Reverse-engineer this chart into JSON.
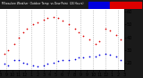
{
  "bg_color": "#1a1a1a",
  "plot_bg": "#ffffff",
  "legend_blue_color": "#0000dd",
  "legend_red_color": "#dd0000",
  "grid_color": "#888888",
  "x_tick_labels": [
    "8",
    "",
    "",
    "9",
    "",
    "",
    "10",
    "",
    "",
    "11",
    "",
    "",
    "12",
    "",
    "",
    "1",
    "",
    "",
    "2",
    "",
    "",
    "3",
    "",
    "",
    "4",
    "",
    "",
    "5",
    "",
    "",
    "6",
    "",
    "",
    "7",
    "",
    "",
    "8",
    "",
    "",
    "9",
    "",
    "",
    "10",
    "",
    "",
    "11",
    "",
    "",
    "12",
    "",
    "",
    "1",
    "",
    "",
    "2",
    "",
    "",
    "3",
    "",
    "",
    "4",
    "",
    "",
    "5",
    "",
    "",
    "6",
    "",
    "",
    "7"
  ],
  "ylim": [
    14,
    62
  ],
  "ytick_vals": [
    20,
    30,
    40,
    50,
    60
  ],
  "ytick_labels": [
    "20",
    "30",
    "40",
    "50",
    "60"
  ],
  "temp_x": [
    2,
    4,
    7,
    9,
    11,
    13,
    16,
    18,
    21,
    23,
    26,
    28,
    30,
    33,
    36,
    38,
    40,
    43,
    46,
    48,
    51,
    53,
    56,
    58
  ],
  "temp_y": [
    27,
    30,
    35,
    40,
    44,
    47,
    50,
    52,
    54,
    55,
    56,
    55,
    53,
    50,
    47,
    44,
    41,
    38,
    35,
    37,
    47,
    45,
    42,
    38
  ],
  "dew_x": [
    2,
    4,
    7,
    9,
    11,
    13,
    16,
    18,
    21,
    23,
    26,
    28,
    30,
    33,
    36,
    38,
    40,
    43,
    46,
    48,
    51,
    53,
    56,
    58
  ],
  "dew_y": [
    19,
    18,
    22,
    22,
    20,
    19,
    18,
    17,
    18,
    19,
    20,
    21,
    22,
    22,
    23,
    24,
    24,
    25,
    25,
    26,
    27,
    26,
    25,
    22
  ],
  "vgrid_x": [
    3,
    9,
    15,
    21,
    27,
    33,
    39,
    45,
    51,
    57
  ],
  "n_points": 60,
  "dot_size": 1.5,
  "tick_label_size": 3.5
}
